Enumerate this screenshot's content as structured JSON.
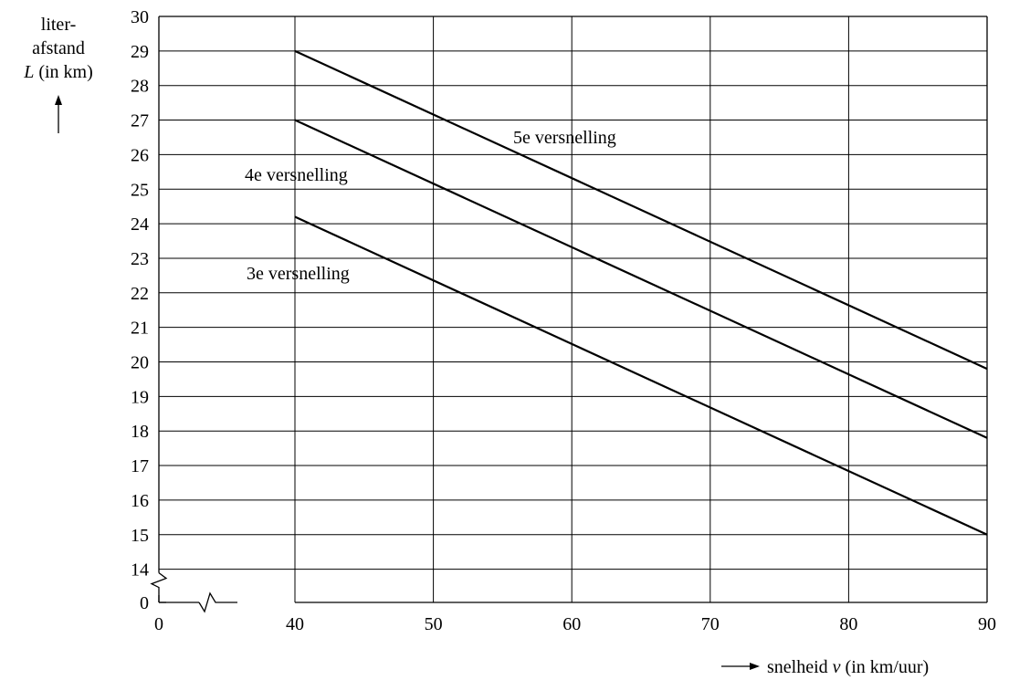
{
  "chart_data": {
    "type": "line",
    "title": "",
    "xlabel": "snelheid v (in km/uur)",
    "xlabel_parts": {
      "pre": "snelheid ",
      "var": "v",
      "post": " (in km/uur)"
    },
    "ylabel_lines": [
      "liter-",
      "afstand"
    ],
    "ylabel_var": "L",
    "ylabel_unit": " (in km)",
    "x_axis_break": true,
    "y_axis_break": true,
    "x_ticks": [
      0,
      40,
      50,
      60,
      70,
      80,
      90
    ],
    "y_ticks": [
      0,
      14,
      15,
      16,
      17,
      18,
      19,
      20,
      21,
      22,
      23,
      24,
      25,
      26,
      27,
      28,
      29,
      30
    ],
    "xlim": [
      40,
      90
    ],
    "ylim": [
      14,
      30
    ],
    "grid": true,
    "series": [
      {
        "name": "5e versnelling",
        "x": [
          40,
          90
        ],
        "y": [
          29.0,
          19.8
        ]
      },
      {
        "name": "4e versnelling",
        "x": [
          40,
          90
        ],
        "y": [
          27.0,
          17.8
        ]
      },
      {
        "name": "3e versnelling",
        "x": [
          40,
          90
        ],
        "y": [
          24.2,
          15.0
        ]
      }
    ]
  }
}
